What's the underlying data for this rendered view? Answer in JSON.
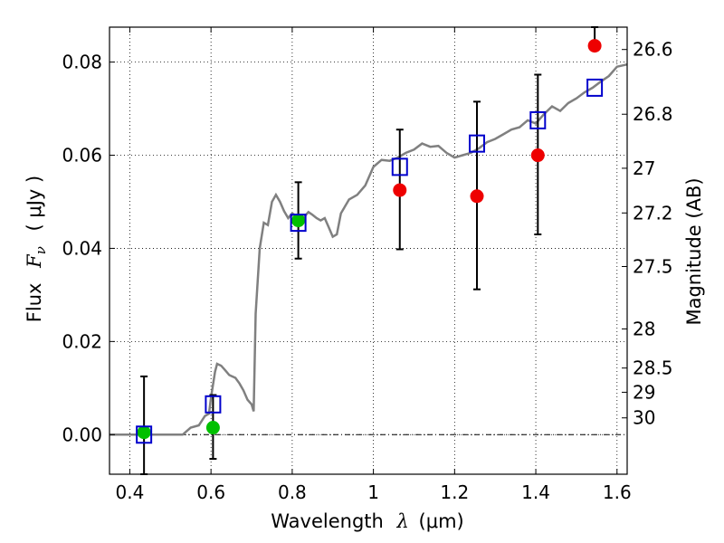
{
  "chart_data": {
    "type": "scatter",
    "xlabel_text": "Wavelength",
    "xlabel_symbol": "λ",
    "xlabel_unit": "(μm)",
    "ylabel_text": "Flux",
    "ylabel_symbol": "F",
    "ylabel_subscript": "ν",
    "ylabel_unit": "( μJy )",
    "ylabel_right": "Magnitude (AB)",
    "xlim": [
      0.35,
      1.625
    ],
    "ylim": [
      -0.0085,
      0.0875
    ],
    "grid": true,
    "x_ticks": [
      0.4,
      0.6,
      0.8,
      1.0,
      1.2,
      1.4,
      1.6
    ],
    "x_tick_labels": [
      "0.4",
      "0.6",
      "0.8",
      "1",
      "1.2",
      "1.4",
      "1.6"
    ],
    "y_ticks": [
      0.0,
      0.02,
      0.04,
      0.06,
      0.08
    ],
    "y_tick_labels": [
      "0.00",
      "0.02",
      "0.04",
      "0.06",
      "0.08"
    ],
    "right_ticks": [
      {
        "label": "26.6",
        "flux": 0.0827
      },
      {
        "label": "26.8",
        "flux": 0.0688
      },
      {
        "label": "27",
        "flux": 0.0572
      },
      {
        "label": "27.2",
        "flux": 0.0476
      },
      {
        "label": "27.5",
        "flux": 0.0361
      },
      {
        "label": "28",
        "flux": 0.0227
      },
      {
        "label": "28.5",
        "flux": 0.0143
      },
      {
        "label": "29",
        "flux": 0.0091
      },
      {
        "label": "30",
        "flux": 0.0036
      }
    ],
    "colors": {
      "model": "#808080",
      "green": "#00c000",
      "red": "#ee0000",
      "box": "#0000cc",
      "errorbar": "#000000"
    },
    "model_spectrum": [
      [
        0.35,
        0.0
      ],
      [
        0.53,
        0.0
      ],
      [
        0.55,
        0.0015
      ],
      [
        0.57,
        0.002
      ],
      [
        0.585,
        0.004
      ],
      [
        0.595,
        0.0045
      ],
      [
        0.6,
        0.008
      ],
      [
        0.61,
        0.0135
      ],
      [
        0.615,
        0.0152
      ],
      [
        0.625,
        0.0148
      ],
      [
        0.635,
        0.0138
      ],
      [
        0.645,
        0.0128
      ],
      [
        0.66,
        0.0122
      ],
      [
        0.67,
        0.011
      ],
      [
        0.68,
        0.0095
      ],
      [
        0.69,
        0.0075
      ],
      [
        0.7,
        0.0065
      ],
      [
        0.705,
        0.005
      ],
      [
        0.71,
        0.026
      ],
      [
        0.72,
        0.04
      ],
      [
        0.73,
        0.0455
      ],
      [
        0.74,
        0.045
      ],
      [
        0.75,
        0.05
      ],
      [
        0.76,
        0.0515
      ],
      [
        0.77,
        0.05
      ],
      [
        0.78,
        0.048
      ],
      [
        0.79,
        0.0465
      ],
      [
        0.8,
        0.0475
      ],
      [
        0.81,
        0.047
      ],
      [
        0.82,
        0.0455
      ],
      [
        0.83,
        0.0468
      ],
      [
        0.84,
        0.0478
      ],
      [
        0.85,
        0.0472
      ],
      [
        0.86,
        0.0465
      ],
      [
        0.87,
        0.046
      ],
      [
        0.88,
        0.0465
      ],
      [
        0.89,
        0.0445
      ],
      [
        0.9,
        0.0425
      ],
      [
        0.91,
        0.043
      ],
      [
        0.92,
        0.0475
      ],
      [
        0.94,
        0.0505
      ],
      [
        0.96,
        0.0515
      ],
      [
        0.98,
        0.0535
      ],
      [
        1.0,
        0.0575
      ],
      [
        1.02,
        0.059
      ],
      [
        1.04,
        0.0588
      ],
      [
        1.06,
        0.0595
      ],
      [
        1.08,
        0.0605
      ],
      [
        1.1,
        0.0612
      ],
      [
        1.12,
        0.0625
      ],
      [
        1.14,
        0.0618
      ],
      [
        1.16,
        0.062
      ],
      [
        1.18,
        0.0605
      ],
      [
        1.2,
        0.0595
      ],
      [
        1.22,
        0.06
      ],
      [
        1.24,
        0.0605
      ],
      [
        1.26,
        0.0615
      ],
      [
        1.28,
        0.0628
      ],
      [
        1.3,
        0.0635
      ],
      [
        1.32,
        0.0645
      ],
      [
        1.34,
        0.0655
      ],
      [
        1.36,
        0.066
      ],
      [
        1.38,
        0.0675
      ],
      [
        1.4,
        0.0668
      ],
      [
        1.42,
        0.0688
      ],
      [
        1.44,
        0.0705
      ],
      [
        1.46,
        0.0695
      ],
      [
        1.48,
        0.0712
      ],
      [
        1.5,
        0.0722
      ],
      [
        1.52,
        0.0735
      ],
      [
        1.54,
        0.0745
      ],
      [
        1.56,
        0.0758
      ],
      [
        1.58,
        0.077
      ],
      [
        1.6,
        0.079
      ],
      [
        1.625,
        0.0795
      ]
    ],
    "model_boxes": [
      {
        "x": 0.435,
        "y": 0.0
      },
      {
        "x": 0.605,
        "y": 0.0065
      },
      {
        "x": 0.815,
        "y": 0.0455
      },
      {
        "x": 1.065,
        "y": 0.0575
      },
      {
        "x": 1.255,
        "y": 0.0625
      },
      {
        "x": 1.405,
        "y": 0.0675
      },
      {
        "x": 1.545,
        "y": 0.0745
      }
    ],
    "observed_green": [
      {
        "x": 0.435,
        "y": 0.0005
      },
      {
        "x": 0.605,
        "y": 0.0015
      },
      {
        "x": 0.815,
        "y": 0.046
      }
    ],
    "observed_red": [
      {
        "x": 1.065,
        "y": 0.0525
      },
      {
        "x": 1.255,
        "y": 0.0512
      },
      {
        "x": 1.405,
        "y": 0.06
      },
      {
        "x": 1.545,
        "y": 0.0835
      }
    ],
    "errorbars": [
      {
        "x": 0.435,
        "low": -0.0085,
        "high": 0.0125
      },
      {
        "x": 0.605,
        "low": -0.0052,
        "high": 0.0085
      },
      {
        "x": 0.815,
        "low": 0.0378,
        "high": 0.0542
      },
      {
        "x": 1.065,
        "low": 0.0398,
        "high": 0.0655
      },
      {
        "x": 1.255,
        "low": 0.0312,
        "high": 0.0715
      },
      {
        "x": 1.405,
        "low": 0.043,
        "high": 0.0773
      },
      {
        "x": 1.545,
        "low": 0.0835,
        "high": 0.0875
      }
    ]
  }
}
